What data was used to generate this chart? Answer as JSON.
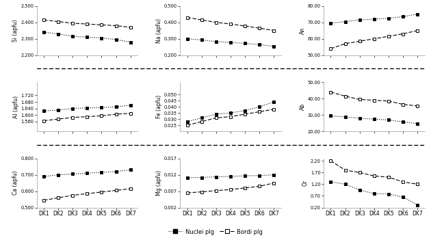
{
  "x_labels": [
    "DK1",
    "DK2",
    "DK3",
    "DK4",
    "DK5",
    "DK6",
    "DK7"
  ],
  "x": [
    0,
    1,
    2,
    3,
    4,
    5,
    6
  ],
  "Si_core": [
    2.34,
    2.33,
    2.315,
    2.31,
    2.305,
    2.295,
    2.28
  ],
  "Si_rim": [
    2.415,
    2.405,
    2.395,
    2.39,
    2.385,
    2.38,
    2.37
  ],
  "Si_ylim": [
    2.2,
    2.5
  ],
  "Si_yticks": [
    2.2,
    2.3,
    2.4,
    2.5
  ],
  "Si_ytick_labels": [
    "2.200",
    "2.300",
    "2.400",
    "2.500"
  ],
  "Si_ylabel": "Si (apfu)",
  "Al_core": [
    1.625,
    1.63,
    1.64,
    1.643,
    1.645,
    1.65,
    1.66
  ],
  "Al_rim": [
    1.565,
    1.575,
    1.585,
    1.59,
    1.595,
    1.605,
    1.61
  ],
  "Al_ylim": [
    1.5,
    1.8
  ],
  "Al_yticks": [
    1.56,
    1.6,
    1.64,
    1.68,
    1.72
  ],
  "Al_ytick_labels": [
    "1.560",
    "1.600",
    "1.640",
    "1.680",
    "1.720"
  ],
  "Al_ylabel": "Al (apfu)",
  "Ca_core": [
    0.69,
    0.7,
    0.705,
    0.71,
    0.715,
    0.72,
    0.73
  ],
  "Ca_rim": [
    0.545,
    0.56,
    0.575,
    0.585,
    0.595,
    0.605,
    0.615
  ],
  "Ca_ylim": [
    0.5,
    0.8
  ],
  "Ca_yticks": [
    0.5,
    0.6,
    0.7,
    0.8
  ],
  "Ca_ytick_labels": [
    "0.500",
    "0.600",
    "0.700",
    "0.800"
  ],
  "Ca_ylabel": "Ca (apfu)",
  "Na_core": [
    0.3,
    0.293,
    0.283,
    0.278,
    0.272,
    0.265,
    0.253
  ],
  "Na_rim": [
    0.43,
    0.415,
    0.4,
    0.39,
    0.378,
    0.365,
    0.35
  ],
  "Na_ylim": [
    0.2,
    0.5
  ],
  "Na_yticks": [
    0.2,
    0.3,
    0.4,
    0.5
  ],
  "Na_ytick_labels": [
    "0.200",
    "0.300",
    "0.400",
    "0.500"
  ],
  "Na_ylabel": "Na (apfu)",
  "Fe_core": [
    0.028,
    0.031,
    0.034,
    0.035,
    0.037,
    0.04,
    0.044
  ],
  "Fe_rim": [
    0.025,
    0.028,
    0.031,
    0.032,
    0.034,
    0.036,
    0.038
  ],
  "Fe_ylim": [
    0.02,
    0.06
  ],
  "Fe_yticks": [
    0.025,
    0.03,
    0.035,
    0.04,
    0.045,
    0.05
  ],
  "Fe_ytick_labels": [
    "0.025",
    "0.030",
    "0.035",
    "0.040",
    "0.045",
    "0.050"
  ],
  "Fe_ylabel": "Fe (apfu)",
  "Mg_core": [
    0.0111,
    0.0112,
    0.0114,
    0.0115,
    0.0117,
    0.0118,
    0.012
  ],
  "Mg_rim": [
    0.0065,
    0.0068,
    0.0072,
    0.0075,
    0.008,
    0.0085,
    0.0095
  ],
  "Mg_ylim": [
    0.002,
    0.017
  ],
  "Mg_yticks": [
    0.002,
    0.007,
    0.012,
    0.017
  ],
  "Mg_ytick_labels": [
    "0.002",
    "0.007",
    "0.012",
    "0.017"
  ],
  "Mg_ylabel": "Mg (apfu)",
  "An_core": [
    69.5,
    70.5,
    71.5,
    72.0,
    72.5,
    73.5,
    75.0
  ],
  "An_rim": [
    54.0,
    57.0,
    58.5,
    60.0,
    61.5,
    63.0,
    65.0
  ],
  "An_ylim": [
    50.0,
    80.0
  ],
  "An_yticks": [
    50.0,
    60.0,
    70.0,
    80.0
  ],
  "An_ytick_labels": [
    "50.00",
    "60.00",
    "70.00",
    "80.00"
  ],
  "An_ylabel": "An",
  "Ab_core": [
    29.5,
    28.8,
    28.0,
    27.5,
    27.0,
    25.8,
    24.8
  ],
  "Ab_rim": [
    44.0,
    41.5,
    39.5,
    39.0,
    38.5,
    36.5,
    35.5
  ],
  "Ab_ylim": [
    20.0,
    50.0
  ],
  "Ab_yticks": [
    20.0,
    30.0,
    40.0,
    50.0
  ],
  "Ab_ytick_labels": [
    "20.00",
    "30.00",
    "40.00",
    "50.00"
  ],
  "Ab_ylabel": "Ab",
  "Or_core": [
    1.3,
    1.2,
    0.95,
    0.8,
    0.78,
    0.65,
    0.32
  ],
  "Or_rim": [
    2.2,
    1.8,
    1.7,
    1.55,
    1.5,
    1.3,
    1.2
  ],
  "Or_ylim": [
    0.2,
    2.3
  ],
  "Or_yticks": [
    0.2,
    0.7,
    1.2,
    1.7,
    2.2
  ],
  "Or_ytick_labels": [
    "0.20",
    "0.70",
    "1.20",
    "1.70",
    "2.20"
  ],
  "Or_ylabel": "Or",
  "legend_core": "Nuclei plg",
  "legend_rim": "Bordi plg",
  "background_color": "#ffffff"
}
